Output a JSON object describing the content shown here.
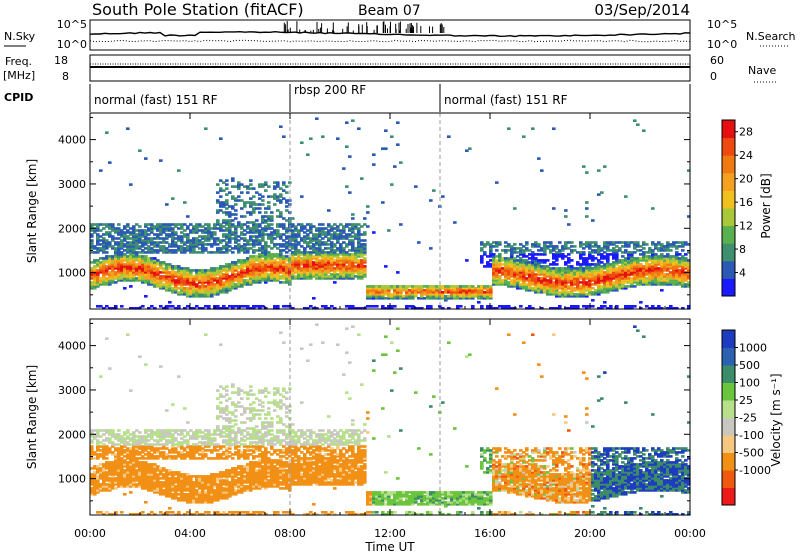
{
  "header": {
    "station": "South Pole Station (fitACF)",
    "beam": "Beam 07",
    "date": "03/Sep/2014"
  },
  "status_panel": {
    "nsky_label": "N.Sky",
    "nsearch_label": "N.Search",
    "freq_label_1": "Freq.",
    "freq_label_2": "[MHz]",
    "nave_label": "Nave",
    "cpid_label": "CPID",
    "noise_ticks_left": [
      "10^5",
      "10^0"
    ],
    "noise_ticks_right": [
      "10^5",
      "10^0"
    ],
    "freq_ticks": [
      "18",
      "8"
    ],
    "nave_ticks": [
      "60",
      "0"
    ]
  },
  "cpid_segments": [
    {
      "label": "normal (fast) 151 RF",
      "start_hour": 0,
      "end_hour": 8
    },
    {
      "label": "rbsp 200 RF",
      "start_hour": 8,
      "end_hour": 14
    },
    {
      "label": "normal (fast) 151 RF",
      "start_hour": 14,
      "end_hour": 24
    }
  ],
  "colors": {
    "power_scale": [
      "#1a1aff",
      "#2a5ab4",
      "#3d8f6e",
      "#58b04f",
      "#a8c83a",
      "#f0c020",
      "#f5a020",
      "#f07a10",
      "#ee4a10",
      "#e61010"
    ],
    "velocity_scale": [
      "#ee1a1a",
      "#f05a10",
      "#f29016",
      "#f6c880",
      "#c8c8c0",
      "#b6e08a",
      "#6ac43c",
      "#3c8c6a",
      "#2c60b0",
      "#1e3cc0"
    ]
  },
  "chart_data": [
    {
      "type": "heatmap",
      "title": "",
      "xlabel": "Time UT",
      "ylabel": "Slant Range [km]",
      "x_ticks": [
        "00:00",
        "04:00",
        "08:00",
        "12:00",
        "16:00",
        "20:00",
        "00:00"
      ],
      "xlim_hours": [
        0,
        24
      ],
      "y_ticks": [
        "1000",
        "2000",
        "3000",
        "4000"
      ],
      "ylim_km": [
        180,
        4600
      ],
      "colorbar_label": "Power [dB]",
      "colorbar_ticks": [
        "4",
        "8",
        "12",
        "16",
        "20",
        "24",
        "28"
      ],
      "colorbar_range": [
        0,
        30
      ]
    },
    {
      "type": "heatmap",
      "title": "",
      "xlabel": "Time UT",
      "ylabel": "Slant Range [km]",
      "x_ticks": [
        "00:00",
        "04:00",
        "08:00",
        "12:00",
        "16:00",
        "20:00",
        "00:00"
      ],
      "xlim_hours": [
        0,
        24
      ],
      "y_ticks": [
        "1000",
        "2000",
        "3000",
        "4000"
      ],
      "ylim_km": [
        180,
        4600
      ],
      "colorbar_label": "Velocity [m s⁻¹]",
      "colorbar_ticks": [
        "1000",
        "500",
        "100",
        "25",
        "-25",
        "-100",
        "-500",
        "-1000"
      ],
      "colorbar_range": [
        -1250,
        1250
      ]
    }
  ]
}
